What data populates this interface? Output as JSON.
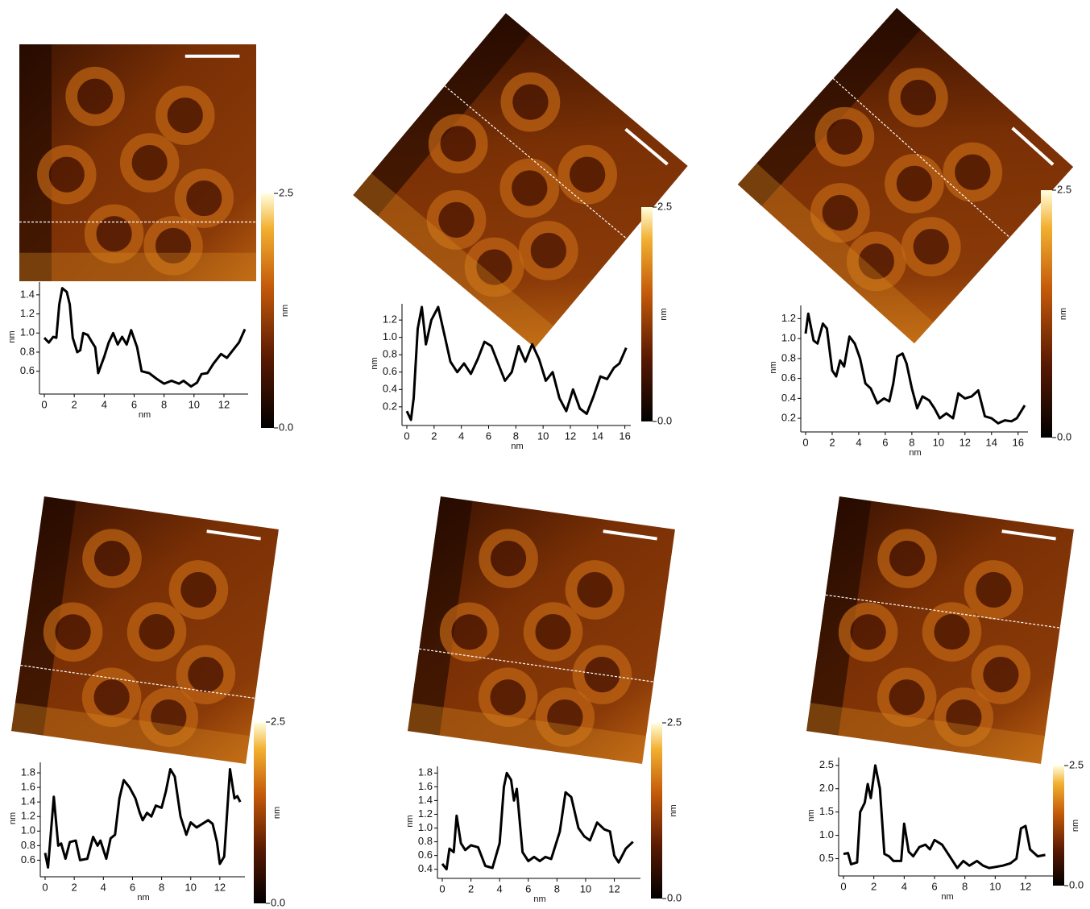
{
  "chart_data": [
    {
      "type": "line",
      "xlabel": "nm",
      "ylabel": "nm",
      "color": "#000000",
      "x": [
        0,
        0.3,
        0.6,
        0.8,
        1.0,
        1.2,
        1.5,
        1.7,
        1.9,
        2.2,
        2.4,
        2.6,
        2.9,
        3.2,
        3.4,
        3.6,
        4.0,
        4.3,
        4.6,
        4.9,
        5.2,
        5.5,
        5.8,
        6.2,
        6.5,
        7.0,
        7.5,
        8.0,
        8.5,
        9.0,
        9.3,
        9.8,
        10.2,
        10.5,
        10.9,
        11.3,
        11.8,
        12.2,
        12.6,
        13.0,
        13.4
      ],
      "values": [
        0.95,
        0.9,
        0.96,
        0.95,
        1.3,
        1.47,
        1.43,
        1.3,
        0.95,
        0.8,
        0.82,
        1.0,
        0.98,
        0.9,
        0.85,
        0.58,
        0.75,
        0.9,
        1.0,
        0.88,
        0.96,
        0.88,
        1.03,
        0.85,
        0.6,
        0.58,
        0.52,
        0.47,
        0.5,
        0.47,
        0.5,
        0.44,
        0.48,
        0.57,
        0.58,
        0.68,
        0.78,
        0.74,
        0.82,
        0.9,
        1.04
      ],
      "xlim": [
        0,
        13.4
      ],
      "ylim": [
        0.42,
        1.5
      ],
      "xticks": [
        0,
        2,
        4,
        6,
        8,
        10,
        12
      ],
      "yticks": [
        0.6,
        0.8,
        {
          "value": 1,
          "label": "1.0"
        },
        1.2,
        1.4
      ],
      "colorbar_lim": [
        0,
        2.5
      ],
      "colorbar_ticks": [
        {
          "value": 0,
          "label": "0.0"
        },
        2.5
      ],
      "colorbar_label": "nm"
    },
    {
      "type": "line",
      "xlabel": "nm",
      "ylabel": "nm",
      "color": "#000000",
      "x": [
        0,
        0.3,
        0.5,
        0.8,
        1.1,
        1.4,
        1.8,
        2.3,
        2.8,
        3.2,
        3.7,
        4.2,
        4.7,
        5.2,
        5.7,
        6.2,
        6.7,
        7.2,
        7.7,
        8.2,
        8.7,
        9.2,
        9.7,
        10.2,
        10.7,
        11.2,
        11.7,
        12.2,
        12.7,
        13.2,
        13.7,
        14.2,
        14.7,
        15.2,
        15.6,
        16.1
      ],
      "values": [
        0.15,
        0.05,
        0.3,
        1.1,
        1.35,
        0.92,
        1.2,
        1.35,
        1.0,
        0.72,
        0.6,
        0.7,
        0.58,
        0.75,
        0.95,
        0.9,
        0.7,
        0.5,
        0.6,
        0.9,
        0.72,
        0.92,
        0.75,
        0.5,
        0.6,
        0.3,
        0.15,
        0.4,
        0.18,
        0.12,
        0.32,
        0.55,
        0.52,
        0.65,
        0.7,
        0.88
      ],
      "xlim": [
        0,
        16.2
      ],
      "ylim": [
        0.05,
        1.35
      ],
      "xticks": [
        0,
        2,
        4,
        6,
        8,
        10,
        12,
        14,
        16
      ],
      "yticks": [
        0.2,
        0.4,
        0.6,
        0.8,
        {
          "value": 1,
          "label": "1.0"
        },
        1.2
      ],
      "colorbar_lim": [
        0,
        2.5
      ],
      "colorbar_ticks": [
        {
          "value": 0,
          "label": "0.0"
        },
        2.5
      ],
      "colorbar_label": "nm"
    },
    {
      "type": "line",
      "xlabel": "nm",
      "ylabel": "nm",
      "color": "#000000",
      "x": [
        0,
        0.2,
        0.6,
        0.9,
        1.3,
        1.6,
        2.0,
        2.3,
        2.6,
        2.9,
        3.3,
        3.7,
        4.1,
        4.5,
        4.9,
        5.4,
        5.9,
        6.3,
        6.6,
        6.9,
        7.3,
        7.6,
        8.0,
        8.4,
        8.8,
        9.3,
        9.7,
        10.1,
        10.6,
        11.1,
        11.5,
        12.0,
        12.5,
        13.0,
        13.5,
        14.0,
        14.5,
        15.0,
        15.5,
        15.9,
        16.5
      ],
      "values": [
        1.05,
        1.25,
        0.98,
        0.95,
        1.15,
        1.1,
        0.68,
        0.62,
        0.78,
        0.72,
        1.02,
        0.95,
        0.8,
        0.55,
        0.5,
        0.35,
        0.4,
        0.37,
        0.55,
        0.82,
        0.85,
        0.75,
        0.5,
        0.3,
        0.42,
        0.38,
        0.3,
        0.2,
        0.25,
        0.2,
        0.45,
        0.4,
        0.42,
        0.48,
        0.22,
        0.2,
        0.15,
        0.18,
        0.17,
        0.2,
        0.33
      ],
      "xlim": [
        0,
        16.5
      ],
      "ylim": [
        0.12,
        1.3
      ],
      "xticks": [
        0,
        2,
        4,
        6,
        8,
        10,
        12,
        14,
        16
      ],
      "yticks": [
        0.2,
        0.4,
        0.6,
        0.8,
        {
          "value": 1,
          "label": "1.0"
        },
        1.2
      ],
      "colorbar_lim": [
        0,
        2.5
      ],
      "colorbar_ticks": [
        {
          "value": 0,
          "label": "0.0"
        },
        2.5
      ],
      "colorbar_label": "nm"
    },
    {
      "type": "line",
      "xlabel": "nm",
      "ylabel": "nm",
      "color": "#000000",
      "x": [
        0,
        0.2,
        0.6,
        0.9,
        1.1,
        1.4,
        1.7,
        2.1,
        2.4,
        2.9,
        3.3,
        3.6,
        3.8,
        4.2,
        4.5,
        4.8,
        5.1,
        5.4,
        5.8,
        6.2,
        6.5,
        6.7,
        7.0,
        7.3,
        7.6,
        8.0,
        8.3,
        8.6,
        8.9,
        9.3,
        9.7,
        10.0,
        10.4,
        10.8,
        11.2,
        11.5,
        11.8,
        12.0,
        12.3,
        12.7,
        13.0,
        13.2,
        13.4
      ],
      "values": [
        0.7,
        0.5,
        1.47,
        0.8,
        0.83,
        0.62,
        0.85,
        0.87,
        0.6,
        0.62,
        0.92,
        0.8,
        0.87,
        0.62,
        0.9,
        0.95,
        1.45,
        1.7,
        1.6,
        1.45,
        1.25,
        1.15,
        1.25,
        1.2,
        1.35,
        1.32,
        1.55,
        1.85,
        1.75,
        1.2,
        0.95,
        1.12,
        1.05,
        1.1,
        1.15,
        1.1,
        0.85,
        0.55,
        0.65,
        1.85,
        1.45,
        1.48,
        1.4
      ],
      "xlim": [
        0,
        13.5
      ],
      "ylim": [
        0.45,
        1.9
      ],
      "xticks": [
        0,
        2,
        4,
        6,
        8,
        10,
        12
      ],
      "yticks": [
        0.6,
        0.8,
        {
          "value": 1,
          "label": "1.0"
        },
        1.2,
        1.4,
        1.6,
        1.8
      ],
      "colorbar_lim": [
        0,
        2.5
      ],
      "colorbar_ticks": [
        {
          "value": 0,
          "label": "0.0"
        },
        2.5
      ],
      "colorbar_label": "nm"
    },
    {
      "type": "line",
      "xlabel": "nm",
      "ylabel": "nm",
      "color": "#000000",
      "x": [
        0,
        0.3,
        0.5,
        0.8,
        1.0,
        1.3,
        1.6,
        2.0,
        2.5,
        3.0,
        3.5,
        4.0,
        4.3,
        4.5,
        4.8,
        5.0,
        5.2,
        5.6,
        6.0,
        6.4,
        6.8,
        7.2,
        7.6,
        8.2,
        8.6,
        9.0,
        9.5,
        9.9,
        10.3,
        10.8,
        11.3,
        11.7,
        12.0,
        12.3,
        12.8,
        13.3
      ],
      "values": [
        0.48,
        0.4,
        0.7,
        0.65,
        1.18,
        0.78,
        0.68,
        0.75,
        0.72,
        0.45,
        0.42,
        0.78,
        1.6,
        1.8,
        1.7,
        1.4,
        1.57,
        0.65,
        0.52,
        0.58,
        0.52,
        0.58,
        0.55,
        0.95,
        1.52,
        1.45,
        1.0,
        0.88,
        0.82,
        1.08,
        0.98,
        0.95,
        0.6,
        0.5,
        0.7,
        0.8
      ],
      "xlim": [
        0,
        13.6
      ],
      "ylim": [
        0.35,
        1.85
      ],
      "xticks": [
        0,
        2,
        4,
        6,
        8,
        10,
        12
      ],
      "yticks": [
        0.4,
        0.6,
        0.8,
        {
          "value": 1,
          "label": "1.0"
        },
        1.2,
        1.4,
        1.6,
        1.8
      ],
      "colorbar_lim": [
        0,
        2.5
      ],
      "colorbar_ticks": [
        {
          "value": 0,
          "label": "0.0"
        },
        2.5
      ],
      "colorbar_label": "nm"
    },
    {
      "type": "line",
      "xlabel": "nm",
      "ylabel": "nm",
      "color": "#000000",
      "x": [
        0,
        0.3,
        0.5,
        0.9,
        1.1,
        1.4,
        1.6,
        1.8,
        2.1,
        2.4,
        2.7,
        3.0,
        3.3,
        3.8,
        4.0,
        4.3,
        4.6,
        5.0,
        5.4,
        5.7,
        6.0,
        6.5,
        7.0,
        7.5,
        7.9,
        8.3,
        8.8,
        9.2,
        9.6,
        10.0,
        10.5,
        11.0,
        11.4,
        11.7,
        12.0,
        12.3,
        12.8,
        13.3
      ],
      "values": [
        0.6,
        0.62,
        0.38,
        0.42,
        1.5,
        1.7,
        2.1,
        1.8,
        2.5,
        2.0,
        0.6,
        0.55,
        0.45,
        0.45,
        1.25,
        0.65,
        0.55,
        0.75,
        0.8,
        0.7,
        0.9,
        0.8,
        0.55,
        0.3,
        0.45,
        0.35,
        0.45,
        0.35,
        0.3,
        0.32,
        0.35,
        0.4,
        0.5,
        1.15,
        1.2,
        0.7,
        0.55,
        0.58
      ],
      "xlim": [
        0,
        13.7
      ],
      "ylim": [
        0.25,
        2.6
      ],
      "xticks": [
        0,
        2,
        4,
        6,
        8,
        10,
        12
      ],
      "yticks": [
        0.5,
        {
          "value": 1,
          "label": "1.0"
        },
        1.5,
        {
          "value": 2,
          "label": "2.0"
        },
        2.5
      ],
      "colorbar_lim": [
        0,
        2.5
      ],
      "colorbar_ticks": [
        {
          "value": 0,
          "label": "0.0"
        },
        2.5
      ],
      "colorbar_label": "nm"
    }
  ]
}
